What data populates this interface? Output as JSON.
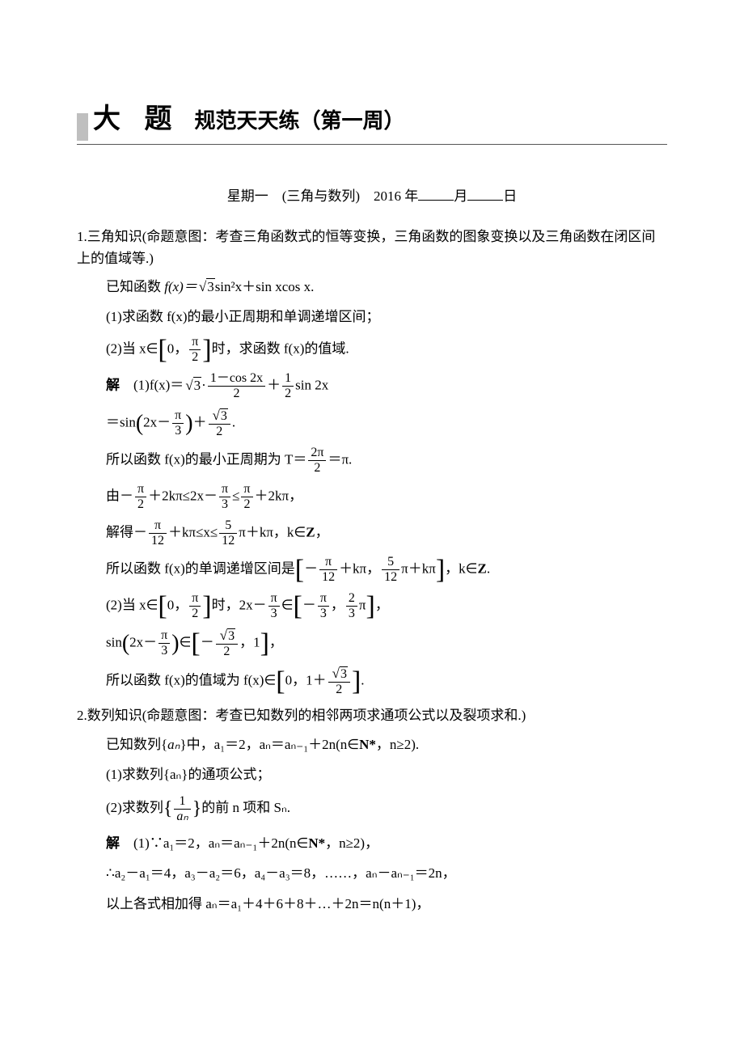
{
  "header": {
    "main": "大 题",
    "sub": "规范天天练（第一周）"
  },
  "date": {
    "prefix": "星期一　(三角与数列)　2016 年",
    "month_suffix": "月",
    "day_suffix": "日"
  },
  "p1": {
    "title": "1.三角知识(命题意图：考查三角函数式的恒等变换，三角函数的图象变换以及三角函数在闭区间上的值域等.)",
    "given_pre": "已知函数 ",
    "given_fn": "f(x)＝",
    "sqrt3": "3",
    "given_mid": "sin²x＋sin xcos x.",
    "q1": "(1)求函数 f(x)的最小正周期和单调递增区间；",
    "q2_pre": "(2)当 x∈",
    "q2_interval_a": "0",
    "q2_interval_b_num": "π",
    "q2_interval_b_den": "2",
    "q2_post": "时，求函数 f(x)的值域.",
    "sol_label": "解",
    "s1_pre": "(1)f(x)＝",
    "s1_mid1": "·",
    "s1_frac1_num": "1－cos 2x",
    "s1_frac1_den": "2",
    "s1_plus": "＋",
    "s1_frac2_num": "1",
    "s1_frac2_den": "2",
    "s1_post": "sin 2x",
    "s2_pre": "＝sin",
    "s2_arg": "2x－",
    "s2_frac_num": "π",
    "s2_frac_den": "3",
    "s2_plus": "＋",
    "s2_frac2_num": "3",
    "s2_frac2_den": "2",
    "s2_post": ".",
    "s3_pre": "所以函数 f(x)的最小正周期为 T＝",
    "s3_frac_num": "2π",
    "s3_frac_den": "2",
    "s3_post": "＝π.",
    "s4_pre": "由－",
    "s4_f1n": "π",
    "s4_f1d": "2",
    "s4_mid1": "＋2kπ≤2x－",
    "s4_f2n": "π",
    "s4_f2d": "3",
    "s4_mid2": "≤",
    "s4_f3n": "π",
    "s4_f3d": "2",
    "s4_post": "＋2kπ，",
    "s5_pre": "解得－",
    "s5_f1n": "π",
    "s5_f1d": "12",
    "s5_mid": "＋kπ≤x≤",
    "s5_f2n": "5",
    "s5_f2d": "12",
    "s5_post": "π＋kπ，k∈",
    "s5_z": "Z",
    "s5_comma": "，",
    "s6_pre": "所以函数 f(x)的单调递增区间是",
    "s6_a_pre": "－",
    "s6_f1n": "π",
    "s6_f1d": "12",
    "s6_mid": "＋kπ",
    "s6_sep": "，",
    "s6_f2n": "5",
    "s6_f2d": "12",
    "s6_b_post": "π＋kπ",
    "s6_post": "，k∈",
    "s6_z": "Z",
    "s6_dot": ".",
    "s7_pre": "(2)当 x∈",
    "s7_a": "0",
    "s7_bn": "π",
    "s7_bd": "2",
    "s7_mid": "时，2x－",
    "s7_f1n": "π",
    "s7_f1d": "3",
    "s7_in": "∈",
    "s7_cn": "π",
    "s7_cd": "3",
    "s7_neg": "－",
    "s7_dn": "2",
    "s7_dd": "3",
    "s7_dpi": "π",
    "s7_comma": "，",
    "s8_pre": "sin",
    "s8_arg": "2x－",
    "s8_f1n": "π",
    "s8_f1d": "3",
    "s8_in": "∈",
    "s8_an": "3",
    "s8_ad": "2",
    "s8_neg": "－",
    "s8_b": "1",
    "s8_comma": "，",
    "s9_pre": "所以函数 f(x)的值域为 f(x)∈",
    "s9_a": "0",
    "s9_mid": "1＋",
    "s9_bn": "3",
    "s9_bd": "2",
    "s9_comma": "，",
    "s9_dot": "."
  },
  "p2": {
    "title": "2.数列知识(命题意图：考查已知数列的相邻两项求通项公式以及裂项求和.)",
    "given_pre": "已知数列{",
    "an": "aₙ",
    "given_mid": "}中，a₁＝2，aₙ＝aₙ₋₁＋2n(n∈",
    "nstar": "N*",
    "given_post": "，n≥2).",
    "q1": "(1)求数列{aₙ}的通项公式；",
    "q2_pre": "(2)求数列",
    "q2_frac_num": "1",
    "q2_frac_den": "aₙ",
    "q2_post": "的前 n 项和 Sₙ.",
    "sol_label": "解",
    "s1": "(1)∵a₁＝2，aₙ＝aₙ₋₁＋2n(n∈",
    "s1_post": "，n≥2)，",
    "s2": "∴a₂－a₁＝4，a₃－a₂＝6，a₄－a₃＝8，……，aₙ－aₙ₋₁＝2n，",
    "s3": "以上各式相加得 aₙ＝a₁＋4＋6＋8＋…＋2n＝n(n＋1)，"
  }
}
